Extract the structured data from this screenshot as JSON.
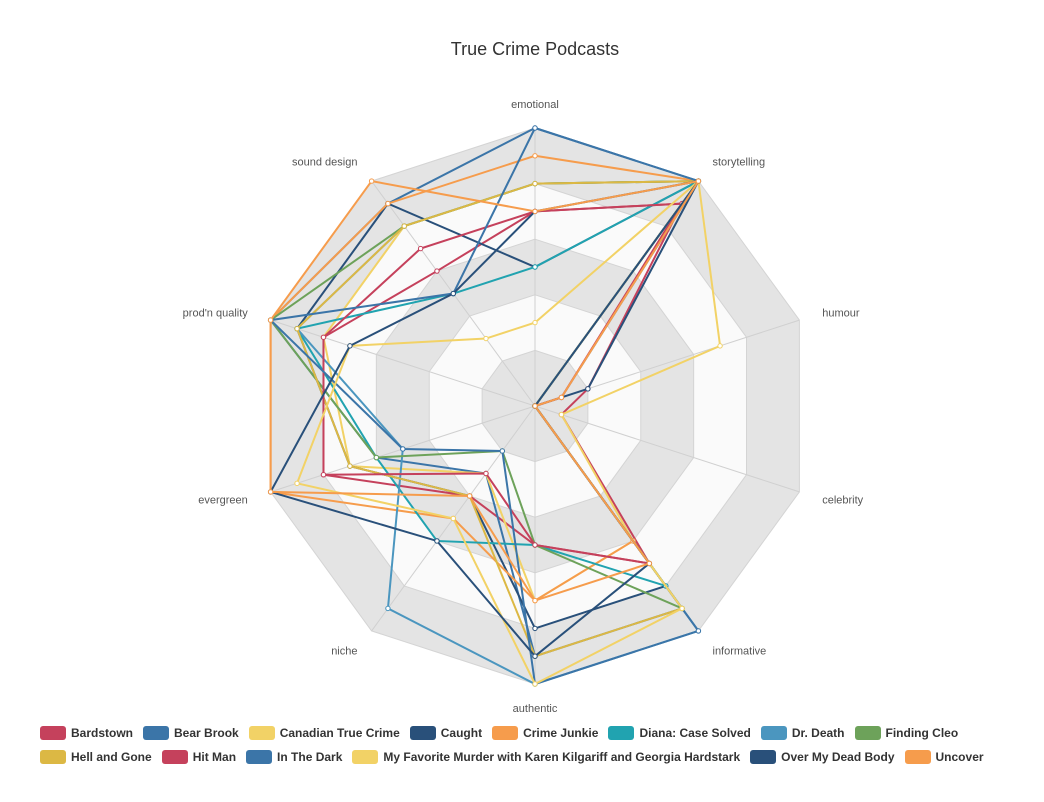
{
  "chart_data": {
    "type": "radar",
    "title": "True Crime Podcasts",
    "axes": [
      "emotional",
      "storytelling",
      "humour",
      "celebrity",
      "informative",
      "authentic",
      "niche",
      "evergreen",
      "prod'n quality",
      "sound design"
    ],
    "scale": [
      0,
      10
    ],
    "grid": true,
    "legend_position": "bottom",
    "series": [
      {
        "name": "Bardstown",
        "color": "#c5415c",
        "values": [
          7,
          9,
          2,
          1,
          7,
          5,
          4,
          8,
          8,
          6
        ]
      },
      {
        "name": "Bear Brook",
        "color": "#3b75a8",
        "values": [
          10,
          10,
          1,
          0,
          9,
          9,
          3,
          6,
          10,
          9
        ]
      },
      {
        "name": "Canadian True Crime",
        "color": "#f2d266",
        "values": [
          8,
          10,
          7,
          1,
          6,
          7,
          3,
          7,
          8,
          8
        ]
      },
      {
        "name": "Caught",
        "color": "#29507a",
        "values": [
          5,
          10,
          2,
          0,
          8,
          8,
          4,
          7,
          9,
          9
        ]
      },
      {
        "name": "Crime Junkie",
        "color": "#f69c4c",
        "values": [
          9,
          10,
          0,
          0,
          6,
          7,
          5,
          10,
          10,
          9
        ]
      },
      {
        "name": "Diana: Case Solved",
        "color": "#21a3b0",
        "values": [
          5,
          10,
          0,
          0,
          8,
          5,
          6,
          6,
          9,
          5
        ]
      },
      {
        "name": "Dr. Death",
        "color": "#4b96bf",
        "values": [
          8,
          10,
          0,
          0,
          10,
          10,
          9,
          5,
          9,
          8
        ]
      },
      {
        "name": "Finding Cleo",
        "color": "#6da25a",
        "values": [
          8,
          10,
          0,
          0,
          9,
          5,
          2,
          6,
          10,
          8
        ]
      },
      {
        "name": "Hell and Gone",
        "color": "#dcb844",
        "values": [
          8,
          10,
          0,
          0,
          9,
          9,
          4,
          7,
          9,
          8
        ]
      },
      {
        "name": "Hit Man",
        "color": "#c5415c",
        "values": [
          7,
          9,
          1,
          0,
          7,
          5,
          3,
          8,
          8,
          7
        ]
      },
      {
        "name": "In The Dark",
        "color": "#3b75a8",
        "values": [
          10,
          10,
          0,
          0,
          10,
          10,
          2,
          5,
          10,
          5
        ]
      },
      {
        "name": "My Favorite Murder with Karen Kilgariff and Georgia Hardstark",
        "color": "#f2d266",
        "values": [
          3,
          10,
          0,
          0,
          9,
          10,
          5,
          9,
          7,
          3
        ]
      },
      {
        "name": "Over My Dead Body",
        "color": "#29507a",
        "values": [
          7,
          10,
          0,
          0,
          7,
          9,
          6,
          10,
          7,
          5
        ]
      },
      {
        "name": "Uncover",
        "color": "#f69c4c",
        "values": [
          7,
          10,
          1,
          0,
          7,
          7,
          4,
          10,
          10,
          10
        ]
      }
    ]
  }
}
